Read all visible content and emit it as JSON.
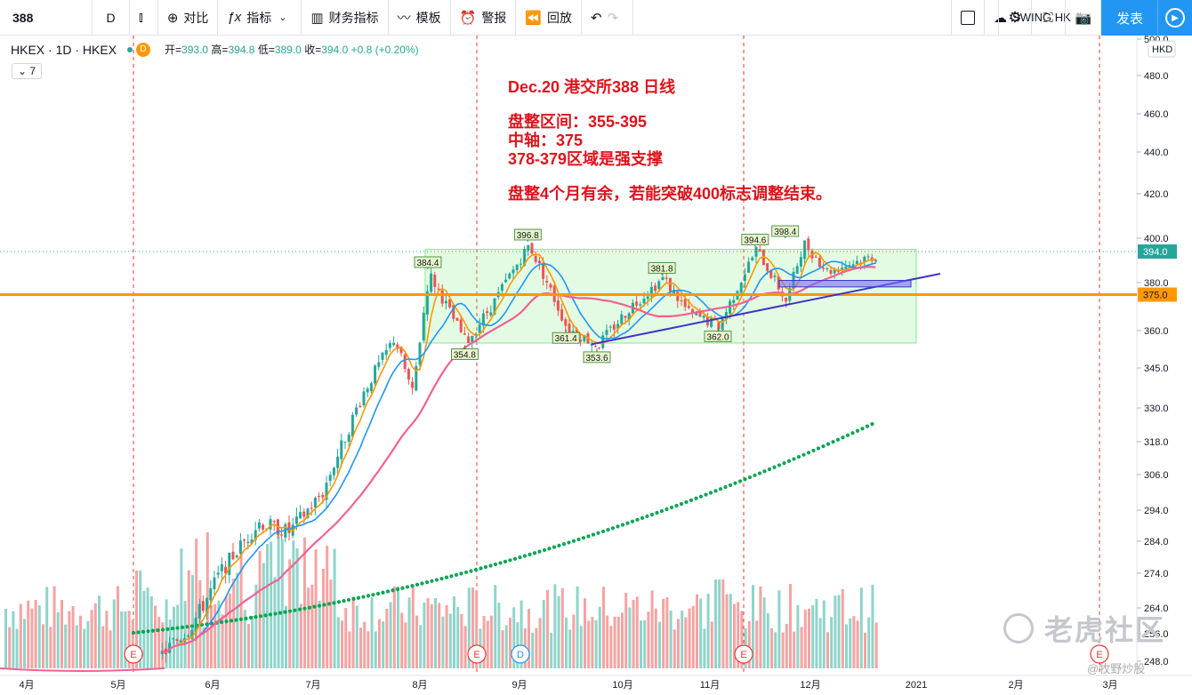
{
  "toolbar": {
    "symbol": "388",
    "timeframe": "D",
    "compare": "对比",
    "indicators": "指标",
    "financials": "财务指标",
    "templates": "模板",
    "alert": "警报",
    "replay": "回放",
    "layout_name": "SWING HK",
    "publish": "发表"
  },
  "legend": {
    "title": "HKEX · 1D · HKEX",
    "badge": "D",
    "open_k": "开=",
    "open": "393.0",
    "high_k": "高=",
    "high": "394.8",
    "low_k": "低=",
    "low": "389.0",
    "close_k": "收=",
    "close": "394.0",
    "change": "+0.8 (+0.20%)",
    "indicator_count": "7"
  },
  "annotations": {
    "line1": "Dec.20 港交所388 日线",
    "line2": "盘整区间：355-395",
    "line3": "中轴：375",
    "line4": "378-379区域是强支撑",
    "line5": "盘整4个月有余，若能突破400标志调整结束。"
  },
  "watermark": {
    "main": "老虎社区",
    "sub": "@牧野炒股"
  },
  "colors": {
    "up": "#26a69a",
    "down": "#ef5350",
    "ma_fast": "#ff9800",
    "ma_mid": "#2196f3",
    "ma_slow": "#f06292",
    "ma_long": "#00a650",
    "hline": "#ff9800",
    "note": "#e0121c",
    "box": "#7fef7f",
    "trend": "#3f35c9"
  },
  "chart_data": {
    "type": "candlestick",
    "currency": "HKD",
    "price_scale": {
      "ticks": [
        500.0,
        480.0,
        460.0,
        440.0,
        420.0,
        400.0,
        380.0,
        360.0,
        345.0,
        330.0,
        318.0,
        306.0,
        294.0,
        284.0,
        274.0,
        264.0,
        256.0,
        248.0
      ]
    },
    "time_axis": [
      "4月",
      "5月",
      "6月",
      "7月",
      "8月",
      "9月",
      "10月",
      "11月",
      "12月",
      "2021",
      "2月",
      "3月"
    ],
    "last_price_label": "394.0",
    "horizontal_line_label": "375.0",
    "horizontal_line_value": 375.0,
    "range_box": [
      355,
      395
    ],
    "events": [
      {
        "date": "5月上旬",
        "label": "E"
      },
      {
        "date": "8月中旬",
        "label": "E"
      },
      {
        "date": "9月初",
        "label": "D"
      },
      {
        "date": "11月中旬",
        "label": "E"
      },
      {
        "date": "3月初",
        "label": "E"
      }
    ],
    "pivots": [
      {
        "date": "8月初",
        "price": 384.4,
        "label": "384.4"
      },
      {
        "date": "8月中旬",
        "price": 354.8,
        "label": "354.8"
      },
      {
        "date": "9月初",
        "price": 396.8,
        "label": "396.8"
      },
      {
        "date": "9月中旬",
        "price": 361.4,
        "label": "361.4"
      },
      {
        "date": "9月下旬",
        "price": 353.6,
        "label": "353.6"
      },
      {
        "date": "10月中旬",
        "price": 381.8,
        "label": "381.8"
      },
      {
        "date": "11月初",
        "price": 362.0,
        "label": "362.0"
      },
      {
        "date": "11月中旬",
        "price": 394.6,
        "label": "394.6"
      },
      {
        "date": "11月下旬",
        "price": 398.4,
        "label": "398.4"
      }
    ],
    "price_path": [
      [
        "5月中旬",
        250
      ],
      [
        "5月下旬",
        258
      ],
      [
        "6月初",
        275
      ],
      [
        "6月中旬",
        290
      ],
      [
        "6月下旬",
        287
      ],
      [
        "7月初",
        300
      ],
      [
        "7月中旬",
        335
      ],
      [
        "7月下旬",
        357
      ],
      [
        "7月末",
        335
      ],
      [
        "8月初",
        384
      ],
      [
        "8月中旬",
        355
      ],
      [
        "8月下旬",
        373
      ],
      [
        "9月初",
        397
      ],
      [
        "9月中旬",
        361
      ],
      [
        "9月下旬",
        354
      ],
      [
        "10月初",
        370
      ],
      [
        "10月中旬",
        382
      ],
      [
        "10月下旬",
        367
      ],
      [
        "11月初",
        362
      ],
      [
        "11月中旬",
        395
      ],
      [
        "11月下旬",
        372
      ],
      [
        "11月末",
        398
      ],
      [
        "12月上旬",
        385
      ],
      [
        "12月中旬",
        390
      ],
      [
        "12月下旬",
        394
      ]
    ]
  }
}
